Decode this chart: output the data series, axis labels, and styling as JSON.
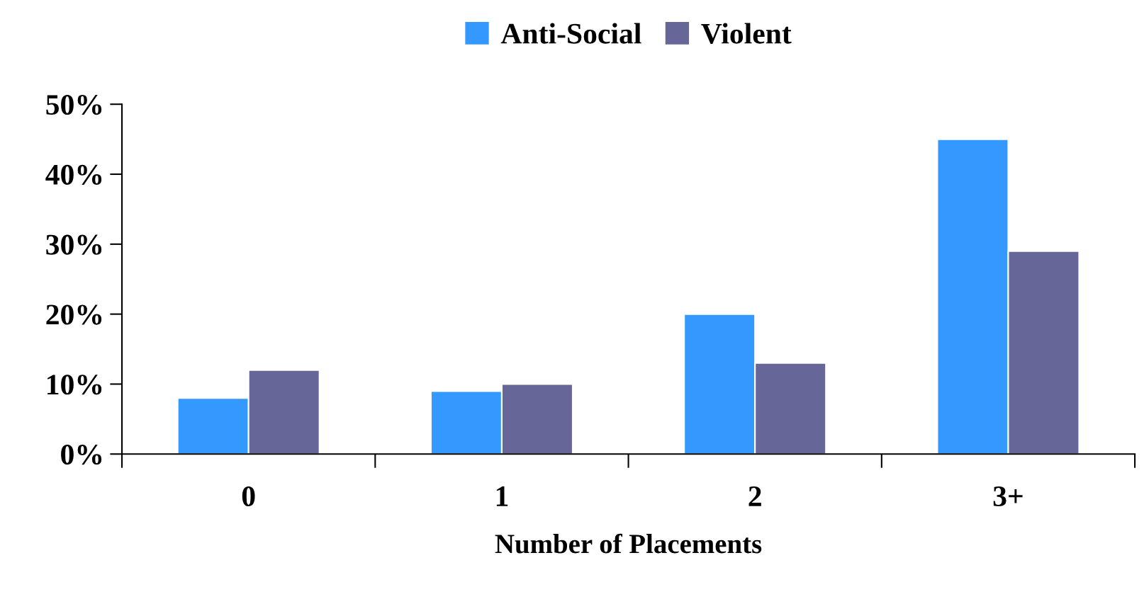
{
  "chart_data": {
    "type": "bar",
    "xlabel": "Number of Placements",
    "categories": [
      "0",
      "1",
      "2",
      "3+"
    ],
    "series": [
      {
        "name": "Anti-Social",
        "color": "#3399ff",
        "values": [
          8,
          9,
          20,
          45
        ]
      },
      {
        "name": "Violent",
        "color": "#666699",
        "values": [
          12,
          10,
          13,
          29
        ]
      }
    ],
    "ylim": [
      0,
      50
    ],
    "yticks": [
      {
        "value": 0,
        "label": "0%"
      },
      {
        "value": 10,
        "label": "10%"
      },
      {
        "value": 20,
        "label": "20%"
      },
      {
        "value": 30,
        "label": "30%"
      },
      {
        "value": 40,
        "label": "40%"
      },
      {
        "value": 50,
        "label": "50%"
      }
    ],
    "grid": false,
    "legend": "top"
  }
}
